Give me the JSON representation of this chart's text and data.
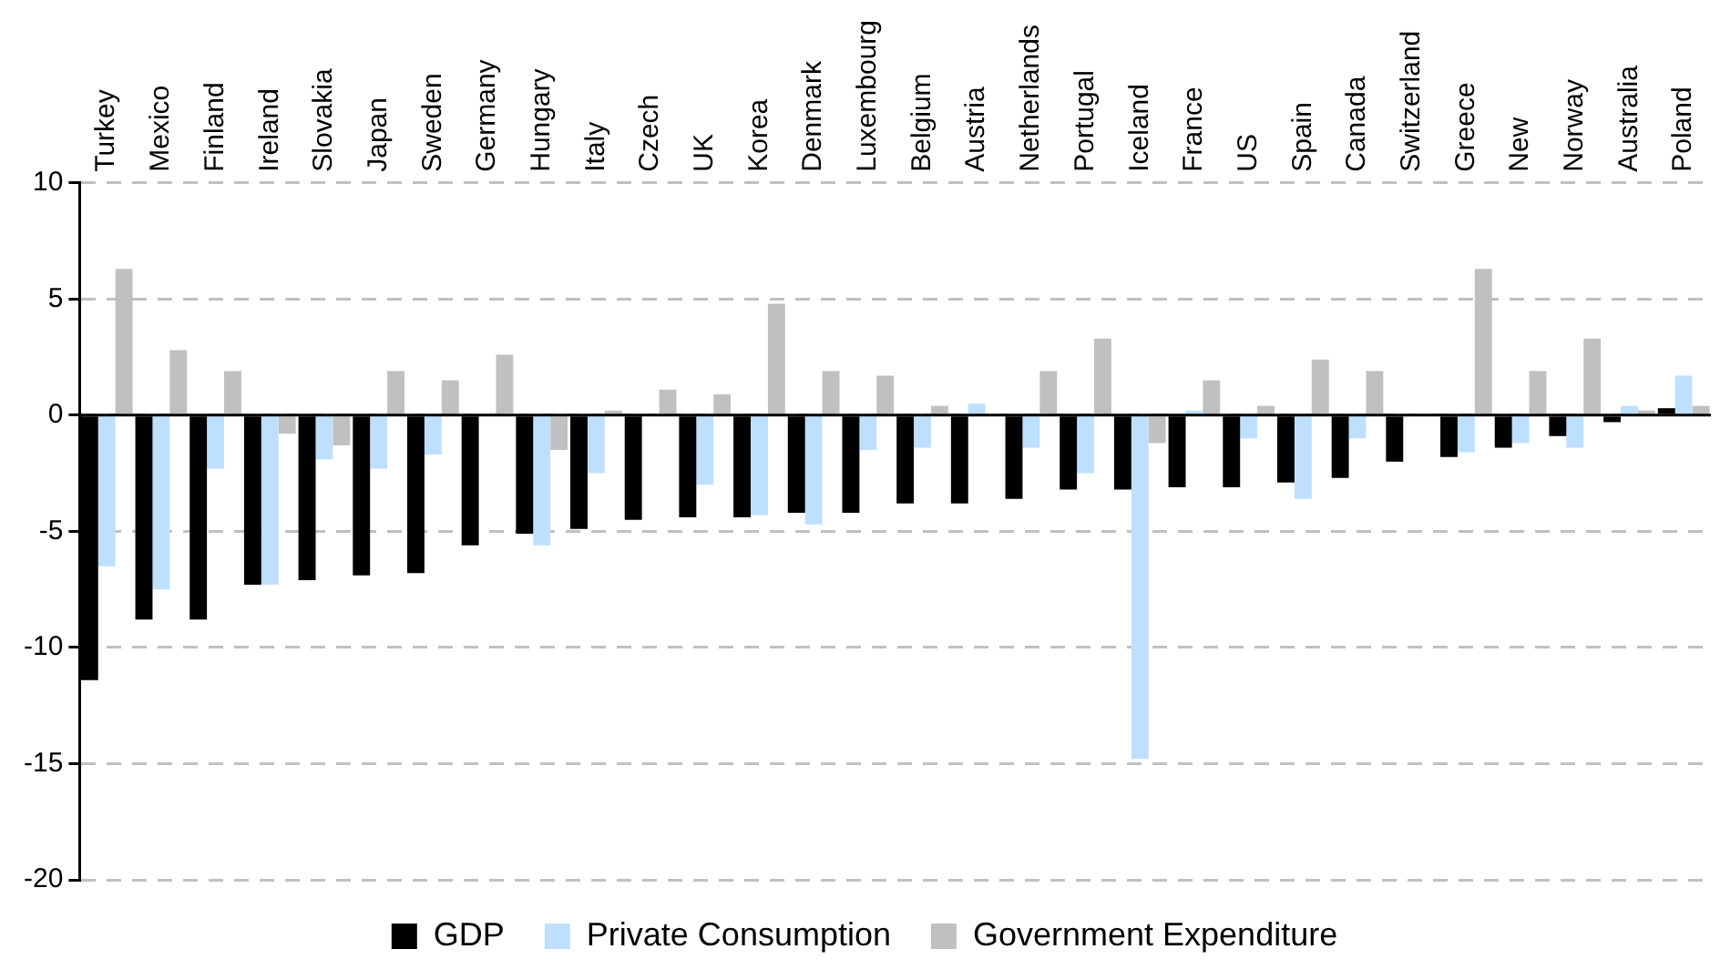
{
  "chart_data": {
    "type": "bar",
    "categories": [
      "Turkey",
      "Mexico",
      "Finland",
      "Ireland",
      "Slovakia",
      "Japan",
      "Sweden",
      "Germany",
      "Hungary",
      "Italy",
      "Czech",
      "UK",
      "Korea",
      "Denmark",
      "Luxembourg",
      "Belgium",
      "Austria",
      "Netherlands",
      "Portugal",
      "Iceland",
      "France",
      "US",
      "Spain",
      "Canada",
      "Switzerland",
      "Greece",
      "New",
      "Norway",
      "Australia",
      "Poland"
    ],
    "series": [
      {
        "name": "GDP",
        "color": "#000000",
        "values": [
          -11.4,
          -8.8,
          -8.8,
          -7.3,
          -7.1,
          -6.9,
          -6.8,
          -5.6,
          -5.1,
          -4.9,
          -4.5,
          -4.4,
          -4.4,
          -4.2,
          -4.2,
          -3.8,
          -3.8,
          -3.6,
          -3.2,
          -3.2,
          -3.1,
          -3.1,
          -2.9,
          -2.7,
          -2.0,
          -1.8,
          -1.4,
          -0.9,
          -0.3,
          0.3
        ]
      },
      {
        "name": "Private Consumption",
        "color": "#bfdfff",
        "values": [
          -6.5,
          -7.5,
          -2.3,
          -7.3,
          -1.9,
          -2.3,
          -1.7,
          0,
          -5.6,
          -2.5,
          null,
          -3.0,
          -4.3,
          -4.7,
          -1.5,
          -1.4,
          0.5,
          -1.4,
          -2.5,
          -14.8,
          0.2,
          -1.0,
          -3.6,
          -1.0,
          0,
          -1.6,
          -1.2,
          -1.4,
          0.4,
          1.7
        ]
      },
      {
        "name": "Government Expenditure",
        "color": "#c0c0c0",
        "values": [
          6.3,
          2.8,
          1.9,
          -0.8,
          -1.3,
          1.9,
          1.5,
          2.6,
          -1.5,
          0.2,
          1.1,
          0.9,
          4.8,
          1.9,
          1.7,
          0.4,
          0,
          1.9,
          3.3,
          -1.2,
          1.5,
          0.4,
          2.4,
          1.9,
          0,
          6.3,
          1.9,
          3.3,
          0.2,
          0.4
        ]
      }
    ],
    "ylim": [
      -20,
      10
    ],
    "yticks": [
      -20,
      -15,
      -10,
      -5,
      0,
      5,
      10
    ],
    "grid": "y",
    "legend": "bottom"
  }
}
